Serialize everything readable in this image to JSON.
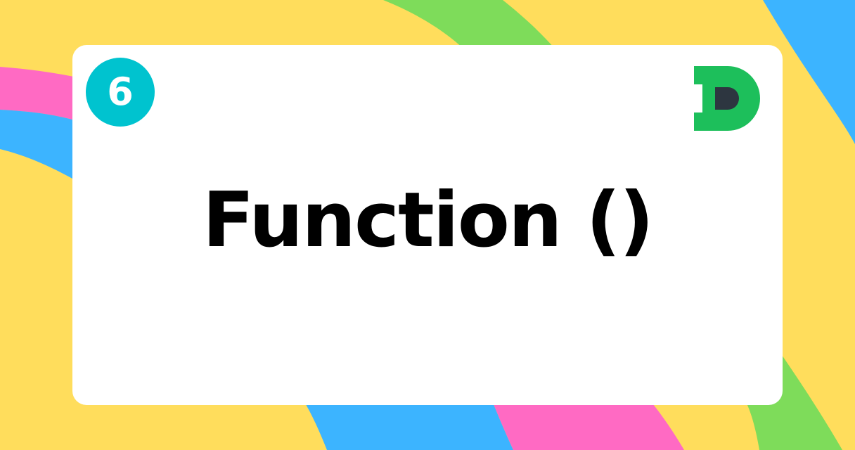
{
  "slide": {
    "badge_number": "6",
    "title": "Function ()"
  },
  "colors": {
    "background": "#FFDD5C",
    "stripe_blue": "#3CB4FF",
    "stripe_pink": "#FF6AC3",
    "stripe_green": "#7EDC5A",
    "badge": "#00C3CF",
    "logo_green": "#1DBF5B",
    "logo_dark": "#2D3640"
  },
  "icons": {
    "badge": "number-badge",
    "logo": "d-logo-icon"
  }
}
